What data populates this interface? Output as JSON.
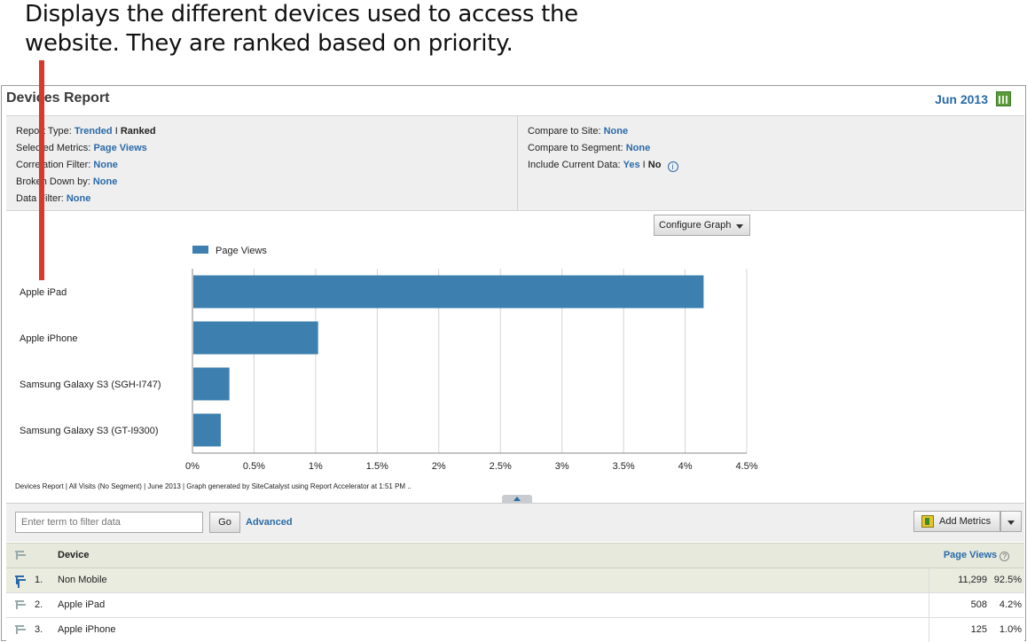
{
  "callout": {
    "line1": "Displays the different devices used to access the",
    "line2": "website. They are ranked based on priority."
  },
  "header": {
    "title": "Devices Report",
    "date": "Jun 2013",
    "calendar_icon": "calendar-icon"
  },
  "params": {
    "left": [
      {
        "label": "Report Type:",
        "value": "Trended",
        "sep": "I",
        "value2": "Ranked"
      },
      {
        "label": "Selected Metrics:",
        "value": "Page Views"
      },
      {
        "label": "Correlation Filter:",
        "value": "None"
      },
      {
        "label": "Broken Down by:",
        "value": "None"
      },
      {
        "label": "Data Filter:",
        "value": "None"
      }
    ],
    "right": [
      {
        "label": "Compare to Site:",
        "value": "None"
      },
      {
        "label": "Compare to Segment:",
        "value": "None"
      },
      {
        "label": "Include Current Data:",
        "value": "Yes",
        "sep": "I",
        "value2": "No",
        "icon": "info-icon"
      }
    ]
  },
  "config_graph_label": "Configure Graph",
  "chart_data": {
    "type": "bar",
    "orientation": "horizontal",
    "legend": "Page Views",
    "legend_position": "top-left",
    "categories": [
      "Apple iPad",
      "Apple iPhone",
      "Samsung Galaxy S3 (SGH-I747)",
      "Samsung Galaxy S3 (GT-I9300)"
    ],
    "values": [
      4.15,
      1.02,
      0.3,
      0.23
    ],
    "xlim": [
      0,
      4.5
    ],
    "xticks": [
      0,
      0.5,
      1,
      1.5,
      2,
      2.5,
      3,
      3.5,
      4,
      4.5
    ],
    "xtick_labels": [
      "0%",
      "0.5%",
      "1%",
      "1.5%",
      "2%",
      "2.5%",
      "3%",
      "3.5%",
      "4%",
      "4.5%"
    ],
    "grid": true,
    "bar_color": "#3d80b0"
  },
  "footnote": "Devices Report | All Visits (No Segment) | June 2013 | Graph generated by SiteCatalyst using Report Accelerator at  1:51 PM ..",
  "toolbar": {
    "filter_placeholder": "Enter term to filter data",
    "go_label": "Go",
    "advanced_label": "Advanced",
    "add_metrics_label": "Add Metrics"
  },
  "table": {
    "device_header": "Device",
    "metric_header": "Page Views",
    "help_glyph": "?",
    "rows": [
      {
        "rank": "1.",
        "device": "Non Mobile",
        "value": "11,299",
        "pct": "92.5%"
      },
      {
        "rank": "2.",
        "device": "Apple iPad",
        "value": "508",
        "pct": "4.2%"
      },
      {
        "rank": "3.",
        "device": "Apple iPhone",
        "value": "125",
        "pct": "1.0%"
      }
    ]
  },
  "colors": {
    "accent": "#2a6aa8",
    "bar": "#3d80b0",
    "callout_line": "#d63a2f"
  }
}
